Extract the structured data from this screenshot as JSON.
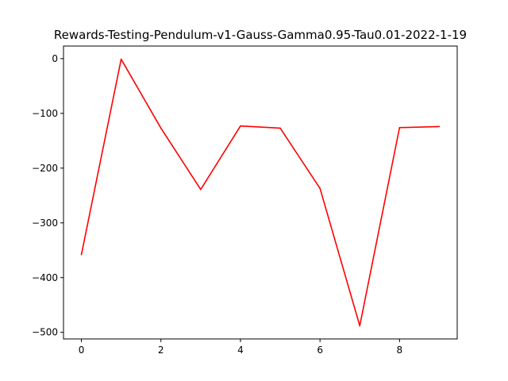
{
  "chart_data": {
    "type": "line",
    "title": "Rewards-Testing-Pendulum-v1-Gauss-Gamma0.95-Tau0.01-2022-1-19",
    "xlabel": "",
    "ylabel": "",
    "x": [
      0,
      1,
      2,
      3,
      4,
      5,
      6,
      7,
      8,
      9
    ],
    "series": [
      {
        "color": "#ff0000",
        "values": [
          -358,
          -1,
          -127,
          -239,
          -123,
          -127,
          -237,
          -488,
          -126,
          -124
        ]
      }
    ],
    "xlim": [
      -0.45,
      9.45
    ],
    "ylim": [
      -512,
      23
    ],
    "x_ticks": [
      0,
      2,
      4,
      6,
      8
    ],
    "y_ticks": [
      0,
      -100,
      -200,
      -300,
      -400,
      -500
    ],
    "x_tick_labels": [
      "0",
      "2",
      "4",
      "6",
      "8"
    ],
    "y_tick_labels": [
      "0",
      "−100",
      "−200",
      "−300",
      "−400",
      "−500"
    ],
    "grid": false,
    "legend": "none"
  }
}
